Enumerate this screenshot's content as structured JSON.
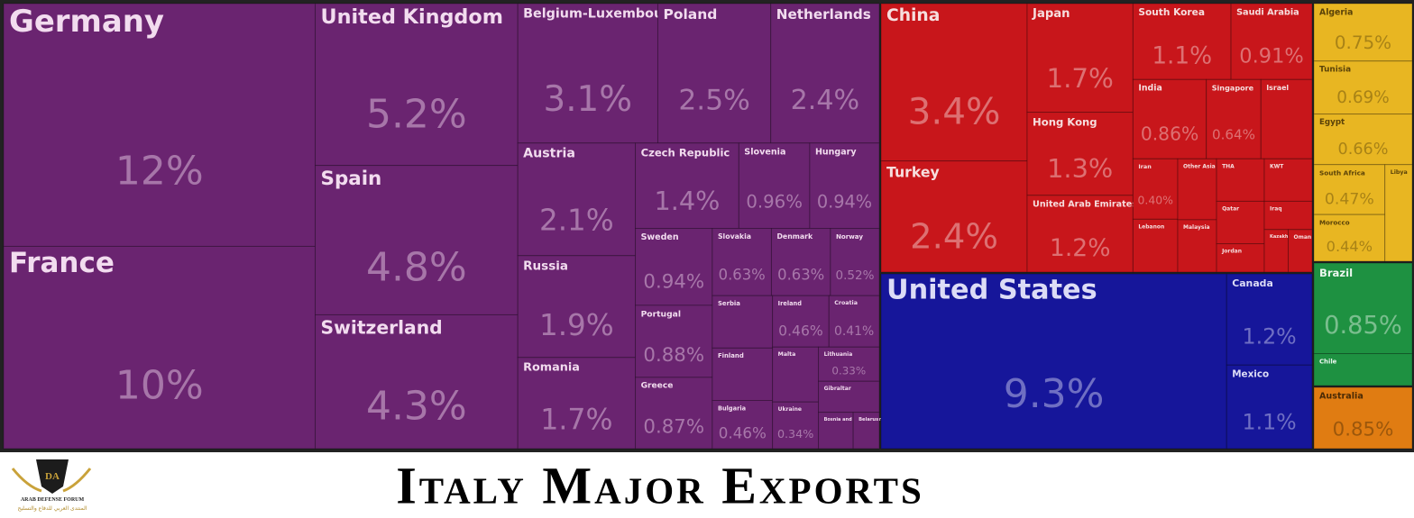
{
  "chart_data": {
    "type": "treemap",
    "title": "Italy Major Exports",
    "logo": {
      "mark": "DA",
      "name": "ARAB DEFENSE FORUM",
      "subtitle": "المنتدى العربي للدفاع والتسليح"
    },
    "groups": [
      {
        "color": "#6a2470",
        "label_color": "#f2dcef",
        "labels": [
          "Germany",
          "France",
          "United Kingdom",
          "Spain",
          "Switzerland",
          "Belgium-Luxembourg",
          "Poland",
          "Netherlands",
          "Austria",
          "Russia",
          "Romania",
          "Czech Republic",
          "Slovenia",
          "Hungary",
          "Sweden",
          "Portugal",
          "Greece",
          "Slovakia",
          "Denmark",
          "Norway",
          "Serbia",
          "Finland",
          "Bulgaria",
          "Ireland",
          "Croatia",
          "Malta",
          "Ukraine",
          "Lithuania",
          "Gibraltar",
          "Bosnia and Herzegovina",
          "Belarus"
        ],
        "values": [
          12,
          10,
          5.2,
          4.8,
          4.3,
          3.1,
          2.5,
          2.4,
          2.1,
          1.9,
          1.7,
          1.4,
          0.96,
          0.94,
          0.94,
          0.88,
          0.87,
          0.63,
          0.63,
          0.52,
          0.5,
          0.5,
          0.46,
          0.46,
          0.41,
          0.4,
          0.34,
          0.33,
          0.3,
          0.2,
          0.15
        ],
        "value_labels": [
          "12%",
          "10%",
          "5.2%",
          "4.8%",
          "4.3%",
          "3.1%",
          "2.5%",
          "2.4%",
          "2.1%",
          "1.9%",
          "1.7%",
          "1.4%",
          "0.96%",
          "0.94%",
          "0.94%",
          "0.88%",
          "0.87%",
          "0.63%",
          "0.63%",
          "0.52%",
          null,
          null,
          "0.46%",
          "0.46%",
          "0.41%",
          null,
          "0.34%",
          "0.33%",
          null,
          null,
          null
        ]
      },
      {
        "color": "#c8161b",
        "label_color": "#f6dede",
        "labels": [
          "China",
          "Turkey",
          "Japan",
          "Hong Kong",
          "United Arab Emirates",
          "South Korea",
          "Saudi Arabia",
          "India",
          "Singapore",
          "Israel",
          "Iran",
          "Lebanon",
          "Other Asia",
          "Malaysia",
          "THA",
          "KWT",
          "Qatar",
          "Jordan",
          "Iraq",
          "Kazakhstan",
          "Oman"
        ],
        "values": [
          3.4,
          2.4,
          1.7,
          1.3,
          1.2,
          1.1,
          0.91,
          0.86,
          0.64,
          0.6,
          0.4,
          0.35,
          0.35,
          0.3,
          0.3,
          0.3,
          0.3,
          0.2,
          0.2,
          0.15,
          0.15
        ],
        "value_labels": [
          "3.4%",
          "2.4%",
          "1.7%",
          "1.3%",
          "1.2%",
          "1.1%",
          "0.91%",
          "0.86%",
          "0.64%",
          null,
          "0.40%",
          null,
          null,
          null,
          null,
          null,
          null,
          null,
          null,
          null,
          null
        ]
      },
      {
        "color": "#16169a",
        "label_color": "#dcdcf6",
        "labels": [
          "United States",
          "Canada",
          "Mexico"
        ],
        "values": [
          9.3,
          1.2,
          1.1
        ],
        "value_labels": [
          "9.3%",
          "1.2%",
          "1.1%"
        ]
      },
      {
        "color": "#e8b622",
        "label_color": "#5a4208",
        "labels": [
          "Algeria",
          "Tunisia",
          "Egypt",
          "South Africa",
          "Morocco",
          "Libya"
        ],
        "values": [
          0.75,
          0.69,
          0.66,
          0.47,
          0.44,
          0.35
        ],
        "value_labels": [
          "0.75%",
          "0.69%",
          "0.66%",
          "0.47%",
          "0.44%",
          null
        ]
      },
      {
        "color": "#1e9141",
        "label_color": "#eaf7ee",
        "labels": [
          "Brazil",
          "Chile"
        ],
        "values": [
          0.85,
          0.3
        ],
        "value_labels": [
          "0.85%",
          null
        ]
      },
      {
        "color": "#e07c12",
        "label_color": "#4a2a05",
        "labels": [
          "Australia"
        ],
        "values": [
          0.85
        ],
        "value_labels": [
          "0.85%"
        ]
      }
    ]
  }
}
